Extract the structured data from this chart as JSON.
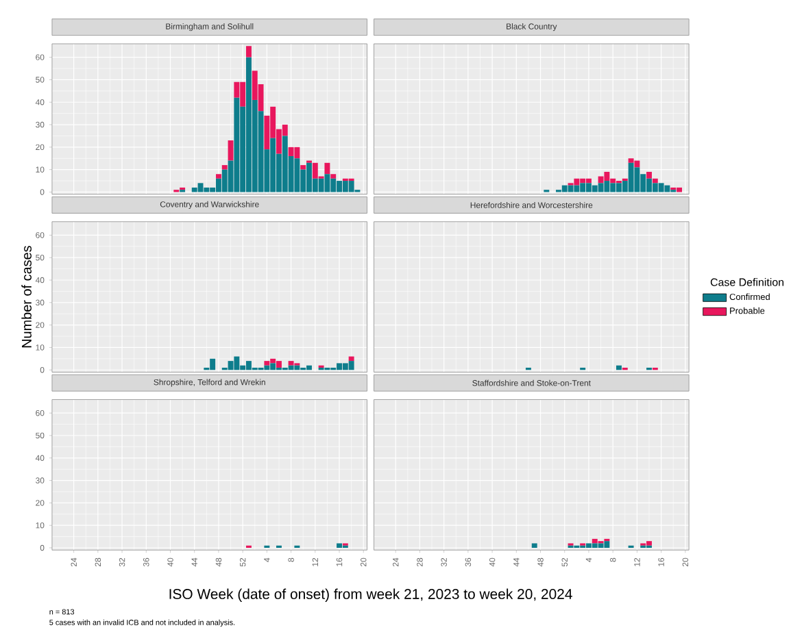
{
  "chart_data": [
    {
      "type": "bar",
      "title": "Birmingham and Solihull",
      "stacked": true,
      "grid": true,
      "tick_labels": "y",
      "ylim": [
        -1,
        66
      ],
      "yticks": [
        0,
        10,
        20,
        30,
        40,
        50,
        60
      ],
      "categories": [
        null,
        null,
        null,
        "24",
        null,
        null,
        null,
        "28",
        null,
        null,
        null,
        "32",
        null,
        null,
        null,
        "36",
        null,
        null,
        null,
        "40",
        null,
        null,
        null,
        "44",
        null,
        null,
        null,
        "48",
        null,
        null,
        null,
        "52",
        null,
        null,
        null,
        "4",
        null,
        null,
        null,
        "8",
        null,
        null,
        null,
        "12",
        null,
        null,
        null,
        "16",
        null,
        null,
        null,
        "20"
      ],
      "series": [
        {
          "color": "#0e7d8c",
          "values": [
            0,
            0,
            0,
            0,
            0,
            0,
            0,
            0,
            0,
            0,
            0,
            0,
            0,
            0,
            0,
            0,
            0,
            0,
            0,
            0,
            0,
            1,
            0,
            2,
            4,
            2,
            2,
            6,
            10,
            14,
            42,
            38,
            60,
            41,
            36,
            19,
            24,
            17,
            25,
            16,
            15,
            10,
            13,
            6,
            6,
            8,
            6,
            5,
            5,
            5,
            1,
            0
          ]
        },
        {
          "color": "#e8175d",
          "values": [
            0,
            0,
            0,
            0,
            0,
            0,
            0,
            0,
            0,
            0,
            0,
            0,
            0,
            0,
            0,
            0,
            0,
            0,
            0,
            0,
            1,
            1,
            0,
            0,
            0,
            0,
            0,
            2,
            2,
            9,
            7,
            11,
            5,
            13,
            12,
            15,
            14,
            11,
            5,
            4,
            5,
            2,
            1,
            7,
            1,
            5,
            2,
            0,
            1,
            1,
            0,
            0
          ]
        }
      ]
    },
    {
      "type": "bar",
      "title": "Black Country",
      "stacked": true,
      "grid": true,
      "tick_labels": false,
      "ylim": [
        -1,
        66
      ],
      "yticks": [
        0,
        10,
        20,
        30,
        40,
        50,
        60
      ],
      "categories": [
        null,
        null,
        null,
        "24",
        null,
        null,
        null,
        "28",
        null,
        null,
        null,
        "32",
        null,
        null,
        null,
        "36",
        null,
        null,
        null,
        "40",
        null,
        null,
        null,
        "44",
        null,
        null,
        null,
        "48",
        null,
        null,
        null,
        "52",
        null,
        null,
        null,
        "4",
        null,
        null,
        null,
        "8",
        null,
        null,
        null,
        "12",
        null,
        null,
        null,
        "16",
        null,
        null,
        null,
        "20"
      ],
      "series": [
        {
          "color": "#0e7d8c",
          "values": [
            0,
            0,
            0,
            0,
            0,
            0,
            0,
            0,
            0,
            0,
            0,
            0,
            0,
            0,
            0,
            0,
            0,
            0,
            0,
            0,
            0,
            0,
            0,
            0,
            0,
            0,
            0,
            0,
            1,
            0,
            1,
            3,
            3,
            3,
            4,
            4,
            3,
            4,
            5,
            4,
            4,
            5,
            13,
            11,
            8,
            6,
            4,
            4,
            3,
            1,
            0,
            0
          ]
        },
        {
          "color": "#e8175d",
          "values": [
            0,
            0,
            0,
            0,
            0,
            0,
            0,
            0,
            0,
            0,
            0,
            0,
            0,
            0,
            0,
            0,
            0,
            0,
            0,
            0,
            0,
            0,
            0,
            0,
            0,
            0,
            0,
            0,
            0,
            0,
            0,
            0,
            1,
            3,
            2,
            2,
            0,
            3,
            4,
            2,
            1,
            1,
            2,
            3,
            0,
            3,
            2,
            0,
            0,
            1,
            2,
            0
          ]
        }
      ]
    },
    {
      "type": "bar",
      "title": "Coventry and Warwickshire",
      "ylabel": "Number of cases",
      "stacked": true,
      "grid": true,
      "tick_labels": "y",
      "ylim": [
        -1,
        66
      ],
      "yticks": [
        0,
        10,
        20,
        30,
        40,
        50,
        60
      ],
      "categories": [
        null,
        null,
        null,
        "24",
        null,
        null,
        null,
        "28",
        null,
        null,
        null,
        "32",
        null,
        null,
        null,
        "36",
        null,
        null,
        null,
        "40",
        null,
        null,
        null,
        "44",
        null,
        null,
        null,
        "48",
        null,
        null,
        null,
        "52",
        null,
        null,
        null,
        "4",
        null,
        null,
        null,
        "8",
        null,
        null,
        null,
        "12",
        null,
        null,
        null,
        "16",
        null,
        null,
        null,
        "20"
      ],
      "series": [
        {
          "color": "#0e7d8c",
          "values": [
            0,
            0,
            0,
            0,
            0,
            0,
            0,
            0,
            0,
            0,
            0,
            0,
            0,
            0,
            0,
            0,
            0,
            0,
            0,
            0,
            0,
            0,
            0,
            0,
            0,
            1,
            5,
            0,
            1,
            4,
            6,
            2,
            4,
            1,
            1,
            2,
            3,
            1,
            1,
            2,
            2,
            1,
            2,
            0,
            1,
            1,
            1,
            3,
            3,
            4,
            0,
            0
          ]
        },
        {
          "color": "#e8175d",
          "values": [
            0,
            0,
            0,
            0,
            0,
            0,
            0,
            0,
            0,
            0,
            0,
            0,
            0,
            0,
            0,
            0,
            0,
            0,
            0,
            0,
            0,
            0,
            0,
            0,
            0,
            0,
            0,
            0,
            0,
            0,
            0,
            0,
            0,
            0,
            0,
            2,
            2,
            3,
            0,
            2,
            1,
            0,
            0,
            0,
            1,
            0,
            0,
            0,
            0,
            2,
            0,
            0
          ]
        }
      ]
    },
    {
      "type": "bar",
      "title": "Herefordshire and Worcestershire",
      "legend": "right",
      "legend_title": "Case Definition",
      "stacked": true,
      "grid": true,
      "tick_labels": false,
      "ylim": [
        -1,
        66
      ],
      "yticks": [
        0,
        10,
        20,
        30,
        40,
        50,
        60
      ],
      "categories": [
        null,
        null,
        null,
        "24",
        null,
        null,
        null,
        "28",
        null,
        null,
        null,
        "32",
        null,
        null,
        null,
        "36",
        null,
        null,
        null,
        "40",
        null,
        null,
        null,
        "44",
        null,
        null,
        null,
        "48",
        null,
        null,
        null,
        "52",
        null,
        null,
        null,
        "4",
        null,
        null,
        null,
        "8",
        null,
        null,
        null,
        "12",
        null,
        null,
        null,
        "16",
        null,
        null,
        null,
        "20"
      ],
      "series": [
        {
          "name": "Confirmed",
          "color": "#0e7d8c",
          "values": [
            0,
            0,
            0,
            0,
            0,
            0,
            0,
            0,
            0,
            0,
            0,
            0,
            0,
            0,
            0,
            0,
            0,
            0,
            0,
            0,
            0,
            0,
            0,
            0,
            0,
            1,
            0,
            0,
            0,
            0,
            0,
            0,
            0,
            0,
            1,
            0,
            0,
            0,
            0,
            0,
            2,
            0,
            0,
            0,
            0,
            1,
            0,
            0,
            0,
            0,
            0,
            0
          ]
        },
        {
          "name": "Probable",
          "color": "#e8175d",
          "values": [
            0,
            0,
            0,
            0,
            0,
            0,
            0,
            0,
            0,
            0,
            0,
            0,
            0,
            0,
            0,
            0,
            0,
            0,
            0,
            0,
            0,
            0,
            0,
            0,
            0,
            0,
            0,
            0,
            0,
            0,
            0,
            0,
            0,
            0,
            0,
            0,
            0,
            0,
            0,
            0,
            0,
            1,
            0,
            0,
            0,
            0,
            1,
            0,
            0,
            0,
            0,
            0
          ]
        }
      ]
    },
    {
      "type": "bar",
      "title": "Shropshire, Telford and Wrekin",
      "xlabel": "ISO Week (date of onset) from week 21, 2023 to week 20, 2024",
      "annotations": [
        "n = 813",
        "5 cases with an invalid ICB and not included in analysis."
      ],
      "stacked": true,
      "grid": true,
      "ylim": [
        -1,
        66
      ],
      "yticks": [
        0,
        10,
        20,
        30,
        40,
        50,
        60
      ],
      "categories": [
        null,
        null,
        null,
        "24",
        null,
        null,
        null,
        "28",
        null,
        null,
        null,
        "32",
        null,
        null,
        null,
        "36",
        null,
        null,
        null,
        "40",
        null,
        null,
        null,
        "44",
        null,
        null,
        null,
        "48",
        null,
        null,
        null,
        "52",
        null,
        null,
        null,
        "4",
        null,
        null,
        null,
        "8",
        null,
        null,
        null,
        "12",
        null,
        null,
        null,
        "16",
        null,
        null,
        null,
        "20"
      ],
      "series": [
        {
          "color": "#0e7d8c",
          "values": [
            0,
            0,
            0,
            0,
            0,
            0,
            0,
            0,
            0,
            0,
            0,
            0,
            0,
            0,
            0,
            0,
            0,
            0,
            0,
            0,
            0,
            0,
            0,
            0,
            0,
            0,
            0,
            0,
            0,
            0,
            0,
            0,
            0,
            0,
            0,
            1,
            0,
            1,
            0,
            0,
            1,
            0,
            0,
            0,
            0,
            0,
            0,
            2,
            1,
            0,
            0,
            0
          ]
        },
        {
          "color": "#e8175d",
          "values": [
            0,
            0,
            0,
            0,
            0,
            0,
            0,
            0,
            0,
            0,
            0,
            0,
            0,
            0,
            0,
            0,
            0,
            0,
            0,
            0,
            0,
            0,
            0,
            0,
            0,
            0,
            0,
            0,
            0,
            0,
            0,
            0,
            1,
            0,
            0,
            0,
            0,
            0,
            0,
            0,
            0,
            0,
            0,
            0,
            0,
            0,
            0,
            0,
            1,
            0,
            0,
            0
          ]
        }
      ]
    },
    {
      "type": "bar",
      "title": "Staffordshire and Stoke-on-Trent",
      "stacked": true,
      "grid": true,
      "tick_labels": "x",
      "ylim": [
        -1,
        66
      ],
      "yticks": [
        0,
        10,
        20,
        30,
        40,
        50,
        60
      ],
      "categories": [
        null,
        null,
        null,
        "24",
        null,
        null,
        null,
        "28",
        null,
        null,
        null,
        "32",
        null,
        null,
        null,
        "36",
        null,
        null,
        null,
        "40",
        null,
        null,
        null,
        "44",
        null,
        null,
        null,
        "48",
        null,
        null,
        null,
        "52",
        null,
        null,
        null,
        "4",
        null,
        null,
        null,
        "8",
        null,
        null,
        null,
        "12",
        null,
        null,
        null,
        "16",
        null,
        null,
        null,
        "20"
      ],
      "series": [
        {
          "color": "#0e7d8c",
          "values": [
            0,
            0,
            0,
            0,
            0,
            0,
            0,
            0,
            0,
            0,
            0,
            0,
            0,
            0,
            0,
            0,
            0,
            0,
            0,
            0,
            0,
            0,
            0,
            0,
            0,
            0,
            2,
            0,
            0,
            0,
            0,
            0,
            1,
            1,
            1,
            2,
            2,
            2,
            3,
            0,
            0,
            0,
            1,
            0,
            1,
            1,
            0,
            0,
            0,
            0,
            0,
            0
          ]
        },
        {
          "color": "#e8175d",
          "values": [
            0,
            0,
            0,
            0,
            0,
            0,
            0,
            0,
            0,
            0,
            0,
            0,
            0,
            0,
            0,
            0,
            0,
            0,
            0,
            0,
            0,
            0,
            0,
            0,
            0,
            0,
            0,
            0,
            0,
            0,
            0,
            0,
            1,
            0,
            1,
            0,
            2,
            1,
            1,
            0,
            0,
            0,
            0,
            0,
            1,
            2,
            0,
            0,
            0,
            0,
            0,
            0
          ]
        }
      ]
    }
  ]
}
